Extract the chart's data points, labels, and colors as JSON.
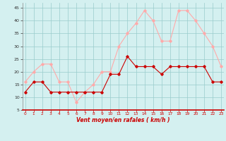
{
  "x": [
    0,
    1,
    2,
    3,
    4,
    5,
    6,
    7,
    8,
    9,
    10,
    11,
    12,
    13,
    14,
    15,
    16,
    17,
    18,
    19,
    20,
    21,
    22,
    23
  ],
  "avg_wind": [
    12,
    16,
    16,
    12,
    12,
    12,
    12,
    12,
    12,
    12,
    19,
    19,
    26,
    22,
    22,
    22,
    19,
    22,
    22,
    22,
    22,
    22,
    16,
    16
  ],
  "gust_wind": [
    16,
    20,
    23,
    23,
    16,
    16,
    8,
    12,
    15,
    20,
    20,
    30,
    35,
    39,
    44,
    40,
    32,
    32,
    44,
    44,
    40,
    35,
    30,
    22
  ],
  "avg_color": "#cc0000",
  "gust_color": "#ffaaaa",
  "bg_color": "#d4f0f0",
  "grid_color": "#99cccc",
  "xlabel": "Vent moyen/en rafales ( km/h )",
  "xlabel_color": "#cc0000",
  "ylim": [
    5,
    47
  ],
  "yticks": [
    5,
    10,
    15,
    20,
    25,
    30,
    35,
    40,
    45
  ],
  "xlim": [
    -0.3,
    23.3
  ],
  "xticks": [
    0,
    1,
    2,
    3,
    4,
    5,
    6,
    7,
    8,
    9,
    10,
    11,
    12,
    13,
    14,
    15,
    16,
    17,
    18,
    19,
    20,
    21,
    22,
    23
  ]
}
